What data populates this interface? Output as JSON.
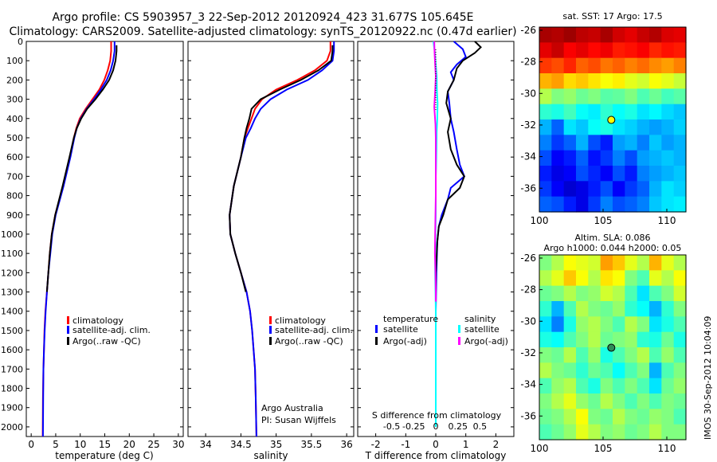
{
  "header": {
    "line1": "Argo profile: CS 5903957_3 22-Sep-2012 20120924_423 31.677S 105.645E",
    "line2": "Climatology: CARS2009. Satellite-adjusted climatology: synTS_20120922.nc (0.47d earlier)"
  },
  "side_text": "IMOS 30-Sep-2012 10:04:09",
  "colors": {
    "climatology": "#ff0000",
    "satellite_adj": "#0000ff",
    "argo": "#000000",
    "t_diff_satellite": "#0000ff",
    "t_diff_argo": "#000000",
    "s_diff_satellite": "#00ffff",
    "s_diff_argo": "#ff00ff"
  },
  "chart_data": [
    {
      "id": "temperature",
      "type": "line",
      "xlabel": "temperature (deg C)",
      "ylabel": "",
      "xlim": [
        -1,
        31
      ],
      "ylim": [
        2050,
        0
      ],
      "xticks": [
        "0",
        "5",
        "10",
        "15",
        "20",
        "25",
        "30"
      ],
      "xtick_values": [
        0,
        5,
        10,
        15,
        20,
        25,
        30
      ],
      "yticks": [
        "0",
        "100",
        "200",
        "300",
        "400",
        "500",
        "600",
        "700",
        "800",
        "900",
        "1000",
        "1100",
        "1200",
        "1300",
        "1400",
        "1500",
        "1600",
        "1700",
        "1800",
        "1900",
        "2000"
      ],
      "ytick_values": [
        0,
        100,
        200,
        300,
        400,
        500,
        600,
        700,
        800,
        900,
        1000,
        1100,
        1200,
        1300,
        1400,
        1500,
        1600,
        1700,
        1800,
        1900,
        2000
      ],
      "legend": [
        "climatology",
        "satellite-adj. clim.",
        "Argo(..raw -QC)"
      ],
      "series": [
        {
          "name": "climatology",
          "color_key": "climatology",
          "x": [
            16.3,
            16.3,
            16.1,
            15.6,
            14.9,
            13.9,
            12.5,
            11.1,
            9.9,
            9.2,
            8.7,
            7.9,
            6.5,
            4.9,
            4.2,
            3.8,
            3.5,
            3.2,
            2.9,
            2.7,
            2.6,
            2.5,
            2.4,
            2.35
          ],
          "y": [
            0,
            50,
            100,
            150,
            200,
            250,
            300,
            350,
            400,
            450,
            500,
            600,
            750,
            900,
            1000,
            1100,
            1200,
            1300,
            1400,
            1500,
            1600,
            1700,
            1850,
            2050
          ]
        },
        {
          "name": "satellite-adj. clim.",
          "color_key": "satellite_adj",
          "x": [
            17.0,
            17.0,
            16.7,
            16.2,
            15.4,
            14.2,
            12.8,
            11.3,
            10.1,
            9.3,
            8.8,
            8.0,
            6.6,
            5.0,
            4.3,
            3.9,
            3.5,
            3.2,
            2.95,
            2.75,
            2.6,
            2.5,
            2.45,
            2.4
          ],
          "y": [
            0,
            50,
            100,
            150,
            200,
            250,
            300,
            350,
            400,
            450,
            500,
            600,
            750,
            900,
            1000,
            1100,
            1200,
            1300,
            1400,
            1500,
            1600,
            1700,
            1850,
            2050
          ]
        },
        {
          "name": "Argo(..raw -QC)",
          "color_key": "argo",
          "x": [
            17.4,
            17.4,
            17.2,
            16.7,
            15.9,
            14.6,
            13.1,
            11.4,
            10.2,
            9.3,
            8.7,
            7.8,
            6.4,
            4.9,
            4.2,
            3.8,
            3.5,
            3.2
          ],
          "y": [
            20,
            50,
            100,
            150,
            200,
            250,
            300,
            350,
            400,
            450,
            500,
            600,
            750,
            900,
            1000,
            1100,
            1200,
            1300
          ]
        }
      ]
    },
    {
      "id": "salinity",
      "type": "line",
      "xlabel": "salinity",
      "ylabel": "",
      "xlim": [
        33.75,
        36.1
      ],
      "ylim": [
        2050,
        0
      ],
      "xticks": [
        "34",
        "34.5",
        "35",
        "35.5",
        "36"
      ],
      "xtick_values": [
        34,
        34.5,
        35,
        35.5,
        36
      ],
      "legend": [
        "climatology",
        "satellite-adj. clim.",
        "Argo(..raw -QC)"
      ],
      "annotation": [
        "Argo Australia",
        "PI: Susan Wijffels"
      ],
      "series": [
        {
          "name": "climatology",
          "color_key": "climatology",
          "x": [
            35.77,
            35.77,
            35.72,
            35.55,
            35.3,
            35.0,
            34.8,
            34.7,
            34.65,
            34.6,
            34.55,
            34.5,
            34.4,
            34.34,
            34.35,
            34.42,
            34.5,
            34.58,
            34.63,
            34.66,
            34.68,
            34.7,
            34.71,
            34.72
          ],
          "y": [
            0,
            50,
            100,
            150,
            200,
            250,
            300,
            350,
            400,
            450,
            500,
            600,
            750,
            900,
            1000,
            1100,
            1200,
            1300,
            1400,
            1500,
            1600,
            1700,
            1850,
            2050
          ]
        },
        {
          "name": "satellite-adj. clim.",
          "color_key": "satellite_adj",
          "x": [
            35.82,
            35.82,
            35.8,
            35.65,
            35.45,
            35.15,
            34.92,
            34.78,
            34.7,
            34.64,
            34.57,
            34.5,
            34.4,
            34.34,
            34.35,
            34.42,
            34.5,
            34.58,
            34.63,
            34.66,
            34.68,
            34.7,
            34.71,
            34.72
          ],
          "y": [
            0,
            50,
            100,
            150,
            200,
            250,
            300,
            350,
            400,
            450,
            500,
            600,
            750,
            900,
            1000,
            1100,
            1200,
            1300,
            1400,
            1500,
            1600,
            1700,
            1850,
            2050
          ]
        },
        {
          "name": "Argo(..raw -QC)",
          "color_key": "argo",
          "x": [
            35.8,
            35.8,
            35.78,
            35.6,
            35.35,
            35.05,
            34.78,
            34.65,
            34.62,
            34.58,
            34.55,
            34.5,
            34.4,
            34.34,
            34.35,
            34.42,
            34.5,
            34.57
          ],
          "y": [
            20,
            50,
            100,
            150,
            200,
            250,
            300,
            350,
            400,
            450,
            500,
            600,
            750,
            900,
            1000,
            1100,
            1200,
            1300
          ]
        }
      ]
    },
    {
      "id": "differences",
      "type": "line",
      "xlabel": "T difference from climatology",
      "top_xlabel": "S difference from climatology",
      "xlim": [
        -2.6,
        2.6
      ],
      "ylim": [
        2050,
        0
      ],
      "xticks": [
        "-2",
        "-1",
        "0",
        "1",
        "2"
      ],
      "xtick_values": [
        -2,
        -1,
        0,
        1,
        2
      ],
      "top_xticks": [
        "-0.5",
        "-0.25",
        "0",
        "0.25",
        "0.5"
      ],
      "top_xtick_values": [
        -0.5,
        -0.25,
        0,
        0.25,
        0.5
      ],
      "legend_headers": [
        "temperature",
        "salinity"
      ],
      "legend": [
        "satellite",
        "Argo(-adj)",
        "satellite",
        "Argo(-adj)"
      ],
      "series": [
        {
          "name": "satellite",
          "group": "temperature",
          "color_key": "t_diff_satellite",
          "x": [
            0.6,
            0.9,
            1.0,
            0.7,
            0.5,
            0.6,
            0.4,
            0.45,
            0.5,
            0.6,
            0.7,
            0.8,
            0.95,
            0.5,
            0.4,
            0.2,
            0.1,
            0.05,
            0.02,
            0.0
          ],
          "y": [
            0,
            40,
            80,
            120,
            160,
            200,
            260,
            320,
            400,
            470,
            560,
            640,
            700,
            760,
            820,
            900,
            960,
            1040,
            1200,
            1400
          ]
        },
        {
          "name": "Argo(-adj)",
          "group": "temperature",
          "color_key": "t_diff_argo",
          "x": [
            1.3,
            1.5,
            1.3,
            0.9,
            0.7,
            0.6,
            0.4,
            0.35,
            0.5,
            0.4,
            0.5,
            0.7,
            0.95,
            0.8,
            0.4,
            0.25,
            0.1,
            0.05,
            0.0,
            0.0
          ],
          "y": [
            0,
            30,
            60,
            100,
            140,
            200,
            260,
            320,
            400,
            470,
            560,
            640,
            700,
            760,
            820,
            900,
            960,
            1040,
            1200,
            1350
          ]
        },
        {
          "name": "satellite",
          "group": "salinity",
          "color_key": "s_diff_satellite",
          "x": [
            -0.08,
            -0.03,
            0.0,
            0.03,
            0.04,
            0.06,
            0.05,
            0.03,
            0.02,
            0.01,
            0.0,
            0.0,
            0.0,
            -0.01,
            -0.02,
            -0.02,
            0.0,
            0.0
          ],
          "y": [
            0,
            60,
            120,
            180,
            260,
            320,
            400,
            470,
            560,
            640,
            700,
            800,
            900,
            1000,
            1100,
            1200,
            1400,
            2000
          ]
        },
        {
          "name": "Argo(-adj)",
          "group": "salinity",
          "color_key": "s_diff_argo",
          "x": [
            -0.05,
            -0.04,
            -0.02,
            0.0,
            -0.02,
            -0.05,
            -0.01,
            0.0,
            0.0,
            0.0,
            0.0,
            -0.01,
            -0.02,
            -0.03,
            -0.01,
            0.0,
            0.0
          ],
          "y": [
            0,
            60,
            120,
            180,
            260,
            340,
            430,
            500,
            600,
            700,
            800,
            900,
            1000,
            1100,
            1200,
            1300,
            1350
          ]
        }
      ]
    },
    {
      "id": "sst_map",
      "type": "heatmap",
      "title": "sat. SST: 17  Argo: 17.5",
      "xlim": [
        100,
        111.5
      ],
      "ylim": [
        -37.5,
        -25.8
      ],
      "xticks": [
        "100",
        "105",
        "110"
      ],
      "xtick_values": [
        100,
        105,
        110
      ],
      "yticks": [
        "-26",
        "-28",
        "-30",
        "-32",
        "-34",
        "-36"
      ],
      "ytick_values": [
        -26,
        -28,
        -30,
        -32,
        -34,
        -36
      ],
      "marker": {
        "lon": 105.645,
        "lat": -31.677
      },
      "grid_rows": [
        [
          0.96,
          0.95,
          0.97,
          0.94,
          0.93,
          0.96,
          0.92,
          0.9,
          0.93,
          0.95,
          0.91,
          0.9
        ],
        [
          0.9,
          0.93,
          0.88,
          0.9,
          0.87,
          0.89,
          0.85,
          0.86,
          0.88,
          0.84,
          0.86,
          0.85
        ],
        [
          0.82,
          0.8,
          0.84,
          0.78,
          0.8,
          0.76,
          0.78,
          0.75,
          0.77,
          0.74,
          0.72,
          0.75
        ],
        [
          0.7,
          0.72,
          0.66,
          0.68,
          0.65,
          0.62,
          0.64,
          0.6,
          0.58,
          0.62,
          0.6,
          0.57
        ],
        [
          0.55,
          0.5,
          0.52,
          0.48,
          0.5,
          0.46,
          0.47,
          0.5,
          0.45,
          0.48,
          0.44,
          0.46
        ],
        [
          0.42,
          0.4,
          0.44,
          0.38,
          0.36,
          0.42,
          0.38,
          0.4,
          0.35,
          0.37,
          0.34,
          0.32
        ],
        [
          0.3,
          0.22,
          0.35,
          0.32,
          0.38,
          0.4,
          0.35,
          0.33,
          0.3,
          0.28,
          0.3,
          0.33
        ],
        [
          0.25,
          0.18,
          0.22,
          0.3,
          0.2,
          0.15,
          0.28,
          0.3,
          0.25,
          0.32,
          0.28,
          0.3
        ],
        [
          0.2,
          0.12,
          0.15,
          0.22,
          0.14,
          0.18,
          0.25,
          0.2,
          0.28,
          0.3,
          0.32,
          0.3
        ],
        [
          0.15,
          0.1,
          0.12,
          0.2,
          0.16,
          0.12,
          0.2,
          0.15,
          0.25,
          0.28,
          0.3,
          0.32
        ],
        [
          0.18,
          0.12,
          0.08,
          0.1,
          0.15,
          0.2,
          0.12,
          0.18,
          0.22,
          0.3,
          0.35,
          0.33
        ],
        [
          0.22,
          0.2,
          0.15,
          0.1,
          0.18,
          0.25,
          0.2,
          0.22,
          0.25,
          0.32,
          0.35,
          0.36
        ]
      ]
    },
    {
      "id": "sla_map",
      "type": "heatmap",
      "title_lines": [
        "Altim. SLA: 0.086",
        "Argo h1000: 0.044 h2000: 0.05"
      ],
      "xlim": [
        100,
        111.5
      ],
      "ylim": [
        -37.5,
        -25.8
      ],
      "xticks": [
        "100",
        "105",
        "110"
      ],
      "xtick_values": [
        100,
        105,
        110
      ],
      "yticks": [
        "-26",
        "-28",
        "-30",
        "-32",
        "-34",
        "-36"
      ],
      "ytick_values": [
        -26,
        -28,
        -30,
        -32,
        -34,
        -36
      ],
      "marker": {
        "lon": 105.645,
        "lat": -31.677
      },
      "grid_rows": [
        [
          0.5,
          0.55,
          0.62,
          0.6,
          0.58,
          0.72,
          0.68,
          0.6,
          0.55,
          0.7,
          0.6,
          0.55
        ],
        [
          0.55,
          0.6,
          0.68,
          0.62,
          0.55,
          0.65,
          0.62,
          0.5,
          0.45,
          0.6,
          0.55,
          0.62
        ],
        [
          0.48,
          0.5,
          0.55,
          0.5,
          0.52,
          0.58,
          0.55,
          0.45,
          0.35,
          0.45,
          0.5,
          0.58
        ],
        [
          0.42,
          0.3,
          0.45,
          0.55,
          0.5,
          0.48,
          0.52,
          0.42,
          0.38,
          0.3,
          0.42,
          0.5
        ],
        [
          0.35,
          0.25,
          0.4,
          0.52,
          0.55,
          0.5,
          0.45,
          0.55,
          0.5,
          0.35,
          0.4,
          0.45
        ],
        [
          0.4,
          0.38,
          0.45,
          0.5,
          0.55,
          0.48,
          0.5,
          0.52,
          0.42,
          0.4,
          0.48,
          0.4
        ],
        [
          0.5,
          0.48,
          0.55,
          0.45,
          0.52,
          0.4,
          0.45,
          0.5,
          0.55,
          0.45,
          0.52,
          0.45
        ],
        [
          0.55,
          0.5,
          0.48,
          0.42,
          0.48,
          0.45,
          0.38,
          0.45,
          0.5,
          0.3,
          0.45,
          0.5
        ],
        [
          0.45,
          0.52,
          0.55,
          0.45,
          0.4,
          0.5,
          0.45,
          0.5,
          0.45,
          0.35,
          0.48,
          0.52
        ],
        [
          0.5,
          0.55,
          0.6,
          0.52,
          0.48,
          0.55,
          0.5,
          0.45,
          0.5,
          0.45,
          0.5,
          0.48
        ],
        [
          0.48,
          0.5,
          0.55,
          0.62,
          0.5,
          0.48,
          0.55,
          0.5,
          0.48,
          0.52,
          0.5,
          0.45
        ],
        [
          0.45,
          0.48,
          0.52,
          0.6,
          0.55,
          0.5,
          0.52,
          0.48,
          0.5,
          0.55,
          0.5,
          0.5
        ]
      ]
    }
  ]
}
